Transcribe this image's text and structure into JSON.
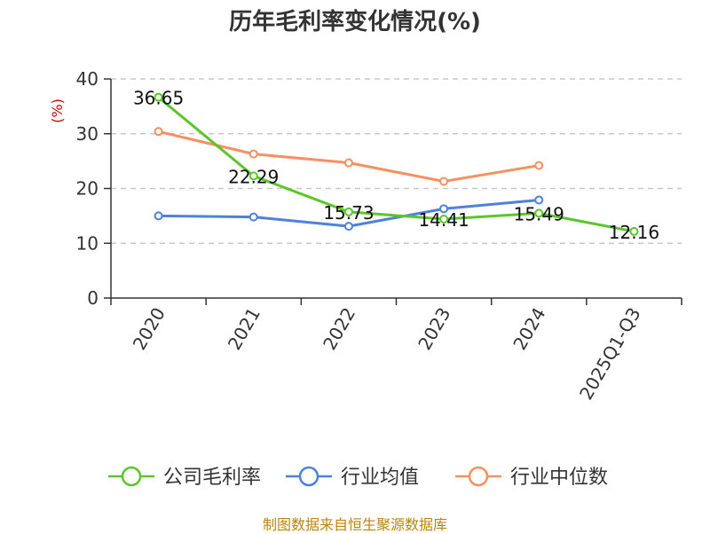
{
  "chart_data": {
    "type": "line",
    "title": "历年毛利率变化情况(%)",
    "ylabel": "(%)",
    "categories": [
      "2020",
      "2021",
      "2022",
      "2023",
      "2024",
      "2025Q1-Q3"
    ],
    "yticks": [
      "0",
      "10",
      "20",
      "30",
      "40"
    ],
    "ylim": [
      0,
      40
    ],
    "grid": true,
    "legend_position": "bottom",
    "series": [
      {
        "name": "公司毛利率",
        "color": "#5cc52a",
        "values": [
          36.65,
          22.29,
          15.73,
          14.41,
          15.49,
          12.16
        ],
        "labels": [
          "36.65",
          "22.29",
          "15.73",
          "14.41",
          "15.49",
          "12.16"
        ]
      },
      {
        "name": "行业均值",
        "color": "#4f81d9",
        "values": [
          15.0,
          14.8,
          13.1,
          16.3,
          17.9,
          null
        ]
      },
      {
        "name": "行业中位数",
        "color": "#f59060",
        "values": [
          30.4,
          26.3,
          24.7,
          21.3,
          24.2,
          null
        ]
      }
    ]
  },
  "source": "制图数据来自恒生聚源数据库"
}
